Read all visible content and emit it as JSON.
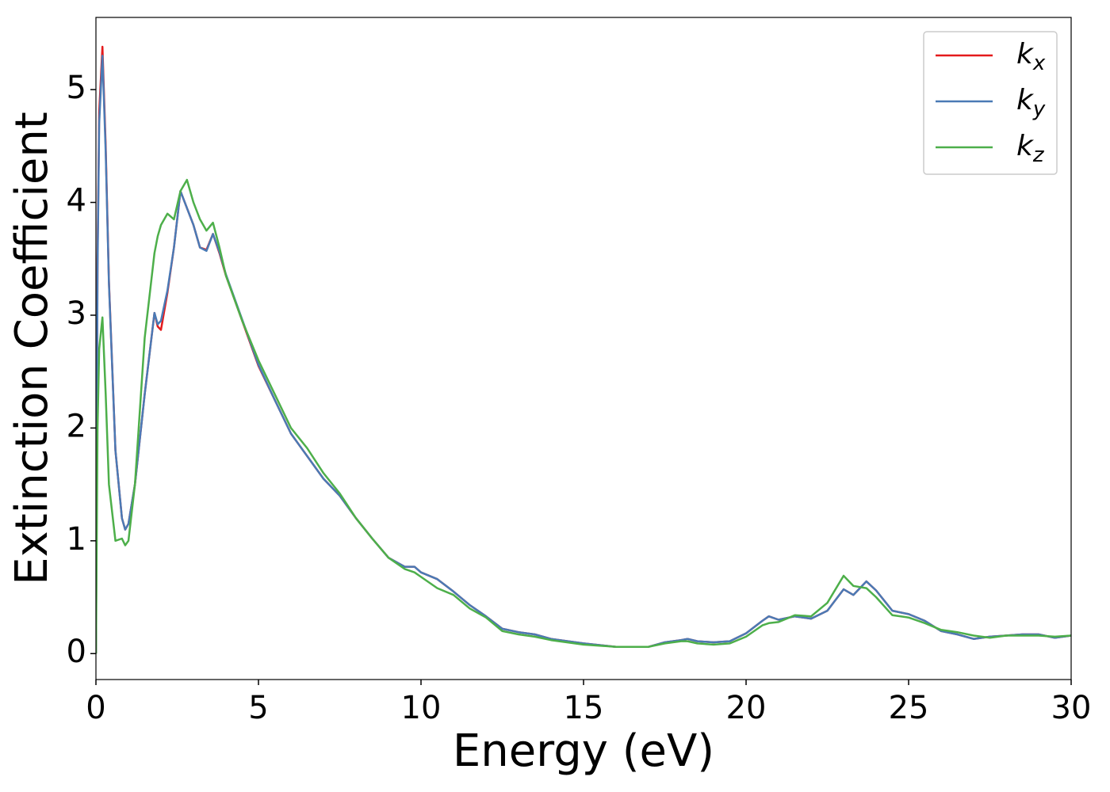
{
  "chart_data": {
    "type": "line",
    "xlabel": "Energy (eV)",
    "ylabel": "Extinction Coefficient",
    "xlim": [
      0,
      30
    ],
    "ylim": [
      -0.23,
      5.64
    ],
    "xticks": [
      0,
      5,
      10,
      15,
      20,
      25,
      30
    ],
    "yticks": [
      0,
      1,
      2,
      3,
      4,
      5
    ],
    "grid": false,
    "legend": "upper right",
    "x": [
      0,
      0.05,
      0.1,
      0.2,
      0.3,
      0.4,
      0.6,
      0.8,
      0.9,
      1.0,
      1.2,
      1.5,
      1.8,
      1.9,
      2.0,
      2.2,
      2.4,
      2.6,
      2.8,
      3.0,
      3.2,
      3.4,
      3.6,
      3.8,
      4.0,
      4.5,
      5,
      5.5,
      6,
      6.5,
      7,
      7.5,
      8,
      8.5,
      9,
      9.5,
      9.8,
      10,
      10.5,
      11,
      11.5,
      12,
      12.5,
      13,
      13.5,
      14,
      15,
      16,
      17,
      17.5,
      18,
      18.2,
      18.5,
      19,
      19.5,
      20,
      20.5,
      20.7,
      21,
      21.5,
      22,
      22.5,
      23,
      23.3,
      23.7,
      24,
      24.5,
      25,
      25.5,
      26,
      26.5,
      27,
      27.5,
      28,
      28.5,
      29,
      29.5,
      30
    ],
    "series": [
      {
        "name": "k",
        "subscript": "x",
        "color": "#e41a1c",
        "values": [
          0,
          3.5,
          4.8,
          5.38,
          4.5,
          3.3,
          1.8,
          1.2,
          1.1,
          1.15,
          1.5,
          2.3,
          3.02,
          2.9,
          2.87,
          3.2,
          3.6,
          4.1,
          3.95,
          3.8,
          3.6,
          3.58,
          3.72,
          3.55,
          3.35,
          2.95,
          2.55,
          2.25,
          1.95,
          1.75,
          1.55,
          1.4,
          1.2,
          1.02,
          0.85,
          0.77,
          0.77,
          0.72,
          0.66,
          0.55,
          0.43,
          0.33,
          0.22,
          0.19,
          0.17,
          0.13,
          0.09,
          0.06,
          0.06,
          0.1,
          0.12,
          0.13,
          0.11,
          0.1,
          0.11,
          0.18,
          0.29,
          0.33,
          0.3,
          0.33,
          0.31,
          0.38,
          0.57,
          0.52,
          0.64,
          0.56,
          0.38,
          0.35,
          0.29,
          0.2,
          0.17,
          0.13,
          0.15,
          0.16,
          0.17,
          0.17,
          0.14,
          0.16
        ]
      },
      {
        "name": "k",
        "subscript": "y",
        "color": "#4a7ab5",
        "values": [
          0,
          3.4,
          4.7,
          5.3,
          4.45,
          3.28,
          1.8,
          1.2,
          1.1,
          1.15,
          1.5,
          2.3,
          3.02,
          2.92,
          2.95,
          3.22,
          3.6,
          4.1,
          3.95,
          3.8,
          3.6,
          3.57,
          3.72,
          3.56,
          3.36,
          2.96,
          2.56,
          2.25,
          1.95,
          1.75,
          1.55,
          1.4,
          1.2,
          1.02,
          0.85,
          0.77,
          0.77,
          0.72,
          0.66,
          0.55,
          0.43,
          0.33,
          0.22,
          0.19,
          0.17,
          0.13,
          0.09,
          0.06,
          0.06,
          0.1,
          0.12,
          0.13,
          0.11,
          0.1,
          0.11,
          0.18,
          0.29,
          0.33,
          0.3,
          0.33,
          0.31,
          0.38,
          0.57,
          0.52,
          0.64,
          0.56,
          0.38,
          0.35,
          0.29,
          0.2,
          0.17,
          0.13,
          0.15,
          0.16,
          0.17,
          0.17,
          0.14,
          0.16
        ]
      },
      {
        "name": "k",
        "subscript": "z",
        "color": "#4daf4a",
        "values": [
          0,
          2.0,
          2.7,
          2.98,
          2.3,
          1.5,
          1.0,
          1.02,
          0.96,
          1.0,
          1.5,
          2.8,
          3.55,
          3.7,
          3.8,
          3.9,
          3.85,
          4.1,
          4.2,
          4.0,
          3.85,
          3.75,
          3.82,
          3.6,
          3.35,
          2.95,
          2.6,
          2.3,
          2.0,
          1.82,
          1.6,
          1.42,
          1.2,
          1.02,
          0.85,
          0.75,
          0.72,
          0.68,
          0.58,
          0.52,
          0.4,
          0.32,
          0.2,
          0.17,
          0.15,
          0.12,
          0.08,
          0.06,
          0.06,
          0.09,
          0.11,
          0.11,
          0.09,
          0.08,
          0.09,
          0.15,
          0.25,
          0.27,
          0.28,
          0.34,
          0.33,
          0.45,
          0.69,
          0.6,
          0.58,
          0.5,
          0.34,
          0.32,
          0.27,
          0.21,
          0.19,
          0.16,
          0.14,
          0.16,
          0.16,
          0.16,
          0.15,
          0.16
        ]
      }
    ]
  }
}
